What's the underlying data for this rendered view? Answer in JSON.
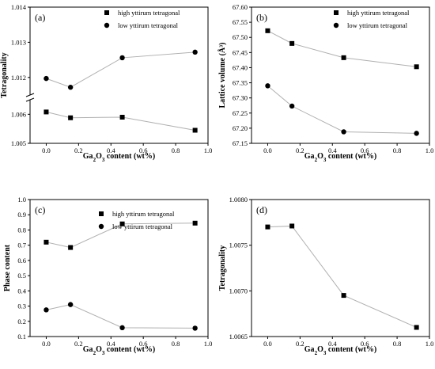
{
  "chart_data": [
    {
      "type": "line",
      "panel_label": "(a)",
      "xlabel_parts": [
        "Ga",
        "2",
        "O",
        "3",
        " content (wt%)"
      ],
      "ylabel": "Tetragonality",
      "axis_break": true,
      "x_ticks": [
        "0.0",
        "0.2",
        "0.4",
        "0.6",
        "0.8",
        "1.0"
      ],
      "upper_ylim": [
        1.0115,
        1.014
      ],
      "upper_ticks": [
        "1.012",
        "1.013",
        "1.014"
      ],
      "lower_ylim": [
        1.005,
        1.0065
      ],
      "lower_ticks": [
        "1.005",
        "1.006"
      ],
      "legend_position": "top-right",
      "series": [
        {
          "name": "high yttirum tetragonal",
          "marker": "square",
          "x": [
            0.0,
            0.15,
            0.47,
            0.92
          ],
          "y": [
            1.00608,
            1.00588,
            1.0059,
            1.00545
          ]
        },
        {
          "name": "low yttirum tetragonal",
          "marker": "circle",
          "x": [
            0.0,
            0.15,
            0.47,
            0.92
          ],
          "y": [
            1.01197,
            1.01172,
            1.01256,
            1.01272
          ]
        }
      ]
    },
    {
      "type": "line",
      "panel_label": "(b)",
      "xlabel_parts": [
        "Ga",
        "2",
        "O",
        "3",
        " content (wt%)"
      ],
      "ylabel": "Lattice volume (Å³)",
      "x_ticks": [
        "0.0",
        "0.2",
        "0.4",
        "0.6",
        "0.8",
        "1.0"
      ],
      "ylim": [
        67.15,
        67.6
      ],
      "y_ticks": [
        "67.15",
        "67.20",
        "67.25",
        "67.30",
        "67.35",
        "67.40",
        "67.45",
        "67.50",
        "67.55",
        "67.60"
      ],
      "legend_position": "top-right",
      "series": [
        {
          "name": "high yttirum tetragonal",
          "marker": "square",
          "x": [
            0.0,
            0.15,
            0.47,
            0.92
          ],
          "y": [
            67.522,
            67.48,
            67.433,
            67.403
          ]
        },
        {
          "name": "low yttirum tetragonal",
          "marker": "circle",
          "x": [
            0.0,
            0.15,
            0.47,
            0.92
          ],
          "y": [
            67.34,
            67.273,
            67.188,
            67.183
          ]
        }
      ]
    },
    {
      "type": "line",
      "panel_label": "(c)",
      "xlabel_parts": [
        "Ga",
        "2",
        "O",
        "3",
        " content (wt%)"
      ],
      "ylabel": "Phase content",
      "x_ticks": [
        "0.0",
        "0.2",
        "0.4",
        "0.6",
        "0.8",
        "1.0"
      ],
      "ylim": [
        0.1,
        1.0
      ],
      "y_ticks": [
        "0.1",
        "0.2",
        "0.3",
        "0.4",
        "0.5",
        "0.6",
        "0.7",
        "0.8",
        "0.9",
        "1.0"
      ],
      "legend_position": "top-right",
      "series": [
        {
          "name": "high yttirum tetragonal",
          "marker": "square",
          "x": [
            0.0,
            0.15,
            0.47,
            0.92
          ],
          "y": [
            0.72,
            0.685,
            0.84,
            0.845
          ]
        },
        {
          "name": "low yttirum tetragonal",
          "marker": "circle",
          "x": [
            0.0,
            0.15,
            0.47,
            0.92
          ],
          "y": [
            0.275,
            0.31,
            0.158,
            0.155
          ]
        }
      ]
    },
    {
      "type": "line",
      "panel_label": "(d)",
      "xlabel_parts": [
        "Ga",
        "2",
        "O",
        "3",
        " content (wt%)"
      ],
      "ylabel": "Tetragonality",
      "x_ticks": [
        "0.0",
        "0.2",
        "0.4",
        "0.6",
        "0.8",
        "1.0"
      ],
      "ylim": [
        1.0065,
        1.008
      ],
      "y_ticks": [
        "1.0065",
        "1.0070",
        "1.0075",
        "1.0080"
      ],
      "legend_position": "none",
      "series": [
        {
          "marker": "square",
          "x": [
            0.0,
            0.15,
            0.47,
            0.92
          ],
          "y": [
            1.0077,
            1.00771,
            1.00695,
            1.0066
          ]
        }
      ]
    }
  ]
}
